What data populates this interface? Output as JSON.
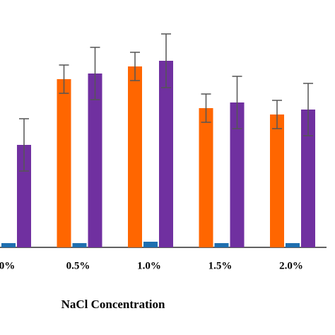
{
  "chart_data": {
    "type": "bar",
    "x_label": "NaCl Concentration",
    "categories": [
      "0%",
      "0.5%",
      "1.0%",
      "1.5%",
      "2.0%"
    ],
    "series": [
      {
        "color": "#ff6600",
        "values": [
          null,
          238,
          256,
          197,
          188
        ],
        "errors": [
          null,
          20,
          20,
          20,
          20
        ]
      },
      {
        "color": "#1f6fb0",
        "values": [
          6,
          6,
          8,
          6,
          6
        ]
      },
      {
        "color": "#7030a0",
        "values": [
          145,
          246,
          264,
          205,
          195
        ],
        "errors": [
          37,
          37,
          38,
          37,
          37
        ]
      }
    ],
    "ylim": [
      0,
      350
    ]
  }
}
